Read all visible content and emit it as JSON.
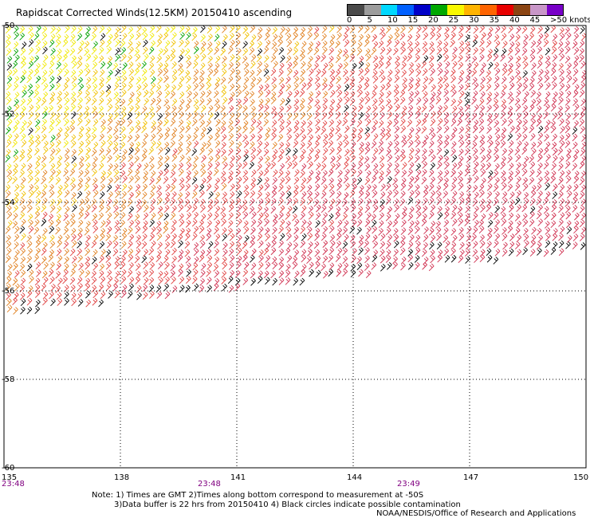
{
  "title": "Rapidscat Corrected Winds(12.5KM) 20150410 ascending",
  "legend": {
    "labels": [
      "0",
      "5",
      "10",
      "15",
      "20",
      "25",
      "30",
      "35",
      "40",
      "45",
      ">50 knots"
    ],
    "colors": [
      "#444444",
      "#8a8a8a",
      "#00c8ff",
      "#0064ff",
      "#0000d2",
      "#00a000",
      "#f0f000",
      "#ffa000",
      "#ff5a00",
      "#e60000",
      "#8b4513",
      "#c8a0c8",
      "#a000c8",
      "#500090"
    ]
  },
  "map": {
    "lat_labels": [
      "-50",
      "-52",
      "-54",
      "-56",
      "-58",
      "-60"
    ],
    "lon_labels": [
      "135",
      "138",
      "141",
      "144",
      "147",
      "150"
    ],
    "time_labels": [
      "23:48",
      "23:48",
      "23:49"
    ]
  },
  "notes": {
    "line1": "Note: 1) Times are GMT 2)Times along bottom correspond to measurement at -50S",
    "line2": "3)Data buffer is 22 hrs from 20150410 4) Black circles indicate possible contamination",
    "credit": "NOAA/NESDIS/Office of Research and Applications"
  }
}
